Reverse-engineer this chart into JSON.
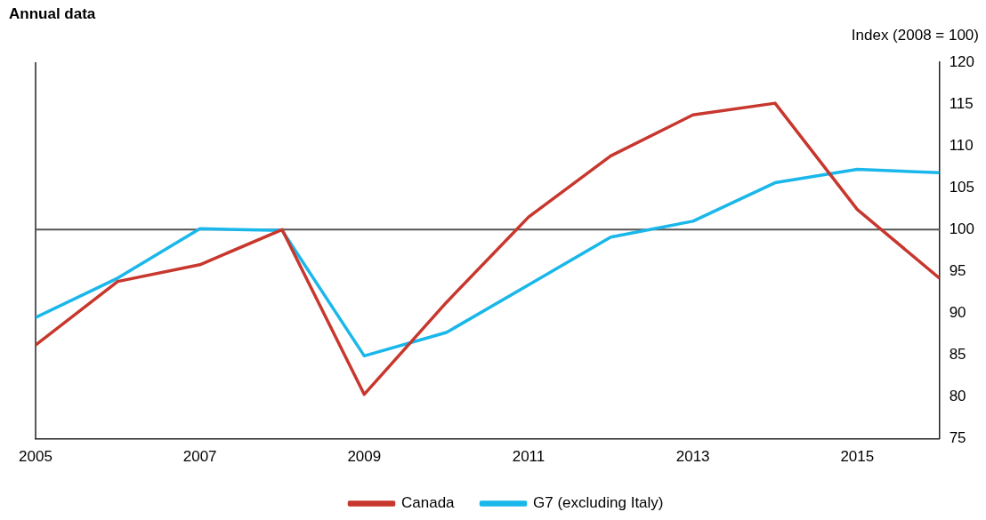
{
  "chart_data": {
    "type": "line",
    "title": "Annual data",
    "ylabel": "Index (2008 = 100)",
    "x": [
      2005,
      2006,
      2007,
      2008,
      2009,
      2010,
      2011,
      2012,
      2013,
      2014,
      2015,
      2016
    ],
    "series": [
      {
        "name": "Canada",
        "color": "#c8372d",
        "values": [
          86.2,
          93.8,
          95.8,
          100,
          80.3,
          91.3,
          101.5,
          108.8,
          113.7,
          115.1,
          102.4,
          94.2
        ]
      },
      {
        "name": "G7 (excluding Italy)",
        "color": "#1ab7ea",
        "values": [
          89.5,
          94.2,
          100.1,
          99.9,
          84.9,
          87.7,
          93.4,
          99.1,
          101,
          105.6,
          107.2,
          106.8
        ]
      }
    ],
    "xlim": [
      2005,
      2016
    ],
    "xticks": [
      2005,
      2007,
      2009,
      2011,
      2013,
      2015
    ],
    "ylim": [
      75,
      120
    ],
    "yticks": [
      75,
      80,
      85,
      90,
      95,
      100,
      105,
      110,
      115,
      120
    ],
    "ref_lines": [
      {
        "axis": "y",
        "value": 100,
        "color": "#555555"
      }
    ],
    "grid": false,
    "legend": "bottom",
    "marker": "none",
    "line_style": "solid"
  }
}
